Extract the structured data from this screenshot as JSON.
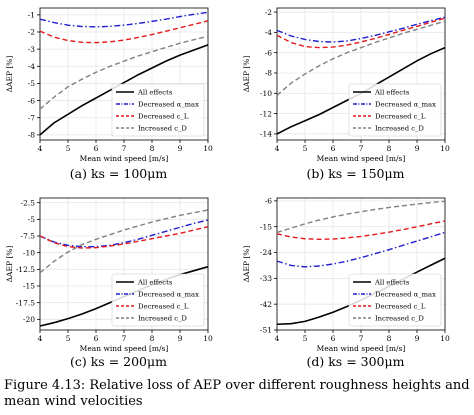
{
  "figure_caption": "Figure 4.13: Relative loss of AEP over different roughness heights and mean wind velocities",
  "colors": {
    "all": "#000000",
    "alpha": "#1f1fd0",
    "cl": "#e31a1c",
    "cd": "#808080"
  },
  "chart_data": [
    {
      "type": "line",
      "subcaption": "(a) ks = 100μm",
      "xlabel": "Mean wind speed [m/s]",
      "ylabel": "ΔAEP [%]",
      "xlim": [
        4,
        10
      ],
      "ylim": [
        -8.3,
        -0.6
      ],
      "xticks": [
        4,
        5,
        6,
        7,
        8,
        9,
        10
      ],
      "yticks": [
        -8,
        -7,
        -6,
        -5,
        -4,
        -3,
        -2,
        -1
      ],
      "grid": true,
      "legend_position": "lower-right",
      "x": [
        4,
        4.5,
        5,
        5.5,
        6,
        6.5,
        7,
        7.5,
        8,
        8.5,
        9,
        9.5,
        10
      ],
      "series": [
        {
          "name": "All effects",
          "style": "solid",
          "color_key": "all",
          "values": [
            -8.0,
            -7.3,
            -6.8,
            -6.3,
            -5.85,
            -5.4,
            -4.95,
            -4.5,
            -4.1,
            -3.7,
            -3.35,
            -3.05,
            -2.75
          ]
        },
        {
          "name": "Decreased α_max",
          "style": "dashdot",
          "color_key": "alpha",
          "values": [
            -1.25,
            -1.45,
            -1.6,
            -1.68,
            -1.7,
            -1.67,
            -1.6,
            -1.5,
            -1.38,
            -1.25,
            -1.1,
            -0.97,
            -0.85
          ]
        },
        {
          "name": "Decreased c_L",
          "style": "dashed",
          "color_key": "cl",
          "values": [
            -1.95,
            -2.3,
            -2.5,
            -2.6,
            -2.62,
            -2.57,
            -2.47,
            -2.32,
            -2.15,
            -1.95,
            -1.75,
            -1.55,
            -1.35
          ]
        },
        {
          "name": "Increased c_D",
          "style": "dashed",
          "color_key": "cd",
          "values": [
            -6.5,
            -5.8,
            -5.2,
            -4.75,
            -4.35,
            -4.0,
            -3.7,
            -3.4,
            -3.15,
            -2.9,
            -2.65,
            -2.45,
            -2.25
          ]
        }
      ]
    },
    {
      "type": "line",
      "subcaption": "(b) ks = 150μm",
      "xlabel": "Mean wind speed [m/s]",
      "ylabel": "ΔAEP [%]",
      "xlim": [
        4,
        10
      ],
      "ylim": [
        -14.6,
        -1.6
      ],
      "xticks": [
        4,
        5,
        6,
        7,
        8,
        9,
        10
      ],
      "yticks": [
        -14,
        -12,
        -10,
        -8,
        -6,
        -4,
        -2
      ],
      "grid": true,
      "legend_position": "lower-right",
      "x": [
        4,
        4.5,
        5,
        5.5,
        6,
        6.5,
        7,
        7.5,
        8,
        8.5,
        9,
        9.5,
        10
      ],
      "series": [
        {
          "name": "All effects",
          "style": "solid",
          "color_key": "all",
          "values": [
            -14.0,
            -13.3,
            -12.7,
            -12.1,
            -11.4,
            -10.7,
            -10.0,
            -9.2,
            -8.4,
            -7.6,
            -6.8,
            -6.1,
            -5.5
          ]
        },
        {
          "name": "Decreased α_max",
          "style": "dashdot",
          "color_key": "alpha",
          "values": [
            -3.8,
            -4.35,
            -4.7,
            -4.9,
            -4.95,
            -4.85,
            -4.6,
            -4.3,
            -3.95,
            -3.6,
            -3.2,
            -2.85,
            -2.5
          ]
        },
        {
          "name": "Decreased c_L",
          "style": "dashed",
          "color_key": "cl",
          "values": [
            -4.3,
            -5.0,
            -5.4,
            -5.5,
            -5.45,
            -5.25,
            -4.95,
            -4.6,
            -4.2,
            -3.8,
            -3.4,
            -3.0,
            -2.6
          ]
        },
        {
          "name": "Increased c_D",
          "style": "dashed",
          "color_key": "cd",
          "values": [
            -10.2,
            -9.0,
            -8.1,
            -7.3,
            -6.6,
            -6.0,
            -5.5,
            -5.0,
            -4.55,
            -4.1,
            -3.7,
            -3.3,
            -2.9
          ]
        }
      ]
    },
    {
      "type": "line",
      "subcaption": "(c) ks = 200μm",
      "xlabel": "Mean wind speed [m/s]",
      "ylabel": "ΔAEP [%]",
      "xlim": [
        4,
        10
      ],
      "ylim": [
        -21.6,
        -1.8
      ],
      "xticks": [
        4,
        5,
        6,
        7,
        8,
        9,
        10
      ],
      "yticks": [
        -20,
        -17.5,
        -15,
        -12.5,
        -10,
        -7.5,
        -5,
        -2.5
      ],
      "grid": true,
      "legend_position": "lower-right",
      "x": [
        4,
        4.5,
        5,
        5.5,
        6,
        6.5,
        7,
        7.5,
        8,
        8.5,
        9,
        9.5,
        10
      ],
      "series": [
        {
          "name": "All effects",
          "style": "solid",
          "color_key": "all",
          "values": [
            -21.0,
            -20.5,
            -19.9,
            -19.2,
            -18.4,
            -17.5,
            -16.6,
            -15.7,
            -14.8,
            -14.0,
            -13.3,
            -12.7,
            -12.1
          ]
        },
        {
          "name": "Decreased α_max",
          "style": "dashdot",
          "color_key": "alpha",
          "values": [
            -7.5,
            -8.4,
            -8.9,
            -9.1,
            -9.1,
            -8.9,
            -8.5,
            -8.0,
            -7.4,
            -6.8,
            -6.2,
            -5.6,
            -5.1
          ]
        },
        {
          "name": "Decreased c_L",
          "style": "dashed",
          "color_key": "cl",
          "values": [
            -7.5,
            -8.5,
            -9.1,
            -9.3,
            -9.25,
            -9.0,
            -8.7,
            -8.3,
            -7.9,
            -7.5,
            -7.1,
            -6.6,
            -6.1
          ]
        },
        {
          "name": "Increased c_D",
          "style": "dashed",
          "color_key": "cd",
          "values": [
            -13.0,
            -11.3,
            -9.9,
            -8.8,
            -8.0,
            -7.3,
            -6.6,
            -6.0,
            -5.4,
            -4.9,
            -4.4,
            -4.0,
            -3.6
          ]
        }
      ]
    },
    {
      "type": "line",
      "subcaption": "(d) ks = 300μm",
      "xlabel": "Mean wind speed [m/s]",
      "ylabel": "ΔAEP [%]",
      "xlim": [
        4,
        10
      ],
      "ylim": [
        -51,
        -5
      ],
      "xticks": [
        4,
        5,
        6,
        7,
        8,
        9,
        10
      ],
      "yticks": [
        -51,
        -42,
        -33,
        -24,
        -15,
        -6
      ],
      "grid": true,
      "legend_position": "lower-right",
      "x": [
        4,
        4.5,
        5,
        5.5,
        6,
        6.5,
        7,
        7.5,
        8,
        8.5,
        9,
        9.5,
        10
      ],
      "series": [
        {
          "name": "All effects",
          "style": "solid",
          "color_key": "all",
          "values": [
            -49.0,
            -48.8,
            -48.0,
            -46.5,
            -44.8,
            -42.8,
            -40.6,
            -38.2,
            -35.8,
            -33.3,
            -30.8,
            -28.4,
            -26.0
          ]
        },
        {
          "name": "Decreased α_max",
          "style": "dashdot",
          "color_key": "alpha",
          "values": [
            -27.0,
            -28.5,
            -29.0,
            -28.7,
            -28.0,
            -27.0,
            -25.8,
            -24.4,
            -23.0,
            -21.5,
            -20.0,
            -18.5,
            -17.0
          ]
        },
        {
          "name": "Decreased c_L",
          "style": "dashed",
          "color_key": "cl",
          "values": [
            -17.5,
            -18.6,
            -19.2,
            -19.4,
            -19.3,
            -18.9,
            -18.4,
            -17.7,
            -16.9,
            -16.0,
            -15.0,
            -14.0,
            -13.0
          ]
        },
        {
          "name": "Increased c_D",
          "style": "dashed",
          "color_key": "cd",
          "values": [
            -17.0,
            -15.5,
            -14.0,
            -12.7,
            -11.6,
            -10.6,
            -9.8,
            -9.0,
            -8.3,
            -7.7,
            -7.1,
            -6.6,
            -6.1
          ]
        }
      ]
    }
  ]
}
